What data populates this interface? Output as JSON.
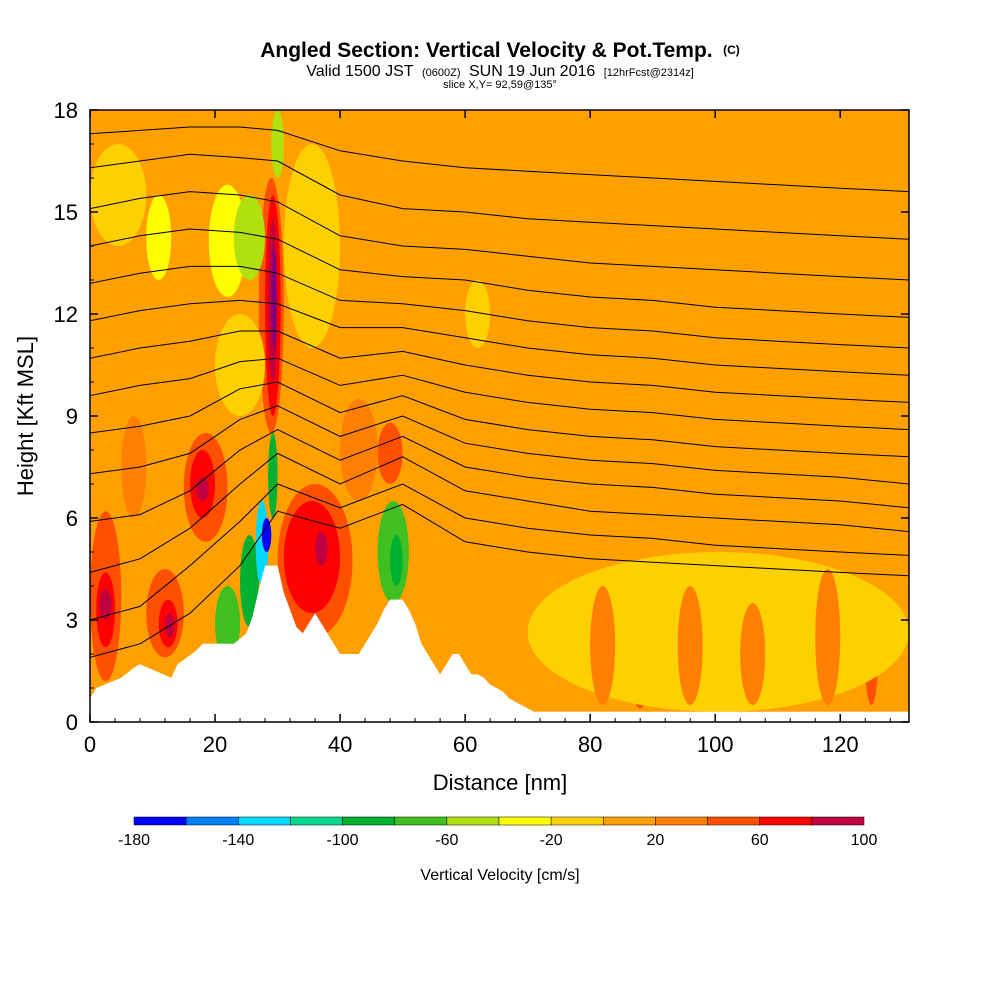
{
  "title": {
    "main": "Angled Section: Vertical Velocity & Pot.Temp.",
    "units_tag": "(C)",
    "valid_prefix": "Valid 1500 JST",
    "valid_zulu": "(0600Z)",
    "valid_date": "SUN 19 Jun 2016",
    "forecast": "[12hrFcst@2314z]",
    "slice": "slice X,Y= 92,59@135°"
  },
  "chart_data": {
    "type": "heatmap",
    "title": "Angled Section: Vertical Velocity & Pot.Temp.",
    "xlabel": "Distance [nm]",
    "ylabel": "Height [Kft MSL]",
    "xlim": [
      0,
      131
    ],
    "ylim": [
      0,
      18
    ],
    "x_ticks": [
      0,
      20,
      40,
      60,
      80,
      100,
      120
    ],
    "y_ticks": [
      0,
      3,
      6,
      9,
      12,
      15,
      18
    ],
    "x_tick_labels": [
      "0",
      "20",
      "40",
      "60",
      "80",
      "100",
      "120"
    ],
    "y_tick_labels": [
      "0",
      "3",
      "6",
      "9",
      "12",
      "15",
      "18"
    ],
    "background_fill": "#ffa000",
    "velocity_cells": [
      {
        "x0": 0,
        "x1": 5,
        "y0": 1.2,
        "y1": 6.2,
        "value": 40
      },
      {
        "x0": 1,
        "x1": 4,
        "y0": 2.2,
        "y1": 4.4,
        "value": 60
      },
      {
        "x0": 1.5,
        "x1": 3.5,
        "y0": 3.0,
        "y1": 3.9,
        "value": 80
      },
      {
        "x0": 9,
        "x1": 15,
        "y0": 1.9,
        "y1": 4.5,
        "value": 40
      },
      {
        "x0": 11,
        "x1": 14,
        "y0": 2.2,
        "y1": 3.6,
        "value": 60
      },
      {
        "x0": 12,
        "x1": 13.5,
        "y0": 2.5,
        "y1": 3.2,
        "value": 80
      },
      {
        "x0": 15,
        "x1": 22,
        "y0": 5.3,
        "y1": 8.5,
        "value": 40
      },
      {
        "x0": 16,
        "x1": 20,
        "y0": 6.0,
        "y1": 8.0,
        "value": 60
      },
      {
        "x0": 17,
        "x1": 19,
        "y0": 6.5,
        "y1": 7.2,
        "value": 80
      },
      {
        "x0": 27,
        "x1": 31,
        "y0": 8.5,
        "y1": 16.0,
        "value": 40
      },
      {
        "x0": 28,
        "x1": 30.5,
        "y0": 9.0,
        "y1": 15.5,
        "value": 60
      },
      {
        "x0": 28.5,
        "x1": 30,
        "y0": 10.0,
        "y1": 14.8,
        "value": 80
      },
      {
        "x0": 29,
        "x1": 29.8,
        "y0": 11.0,
        "y1": 14.0,
        "value": 100
      },
      {
        "x0": 30,
        "x1": 42,
        "y0": 2.5,
        "y1": 7.0,
        "value": 40
      },
      {
        "x0": 31,
        "x1": 40,
        "y0": 3.2,
        "y1": 6.5,
        "value": 60
      },
      {
        "x0": 36,
        "x1": 38,
        "y0": 4.6,
        "y1": 5.6,
        "value": 80
      },
      {
        "x0": 46,
        "x1": 50,
        "y0": 7.0,
        "y1": 8.8,
        "value": 40
      },
      {
        "x0": 86,
        "x1": 90,
        "y0": 0.4,
        "y1": 4.8,
        "value": 40
      },
      {
        "x0": 99,
        "x1": 101,
        "y0": 0.8,
        "y1": 3.5,
        "value": 40
      },
      {
        "x0": 110,
        "x1": 112,
        "y0": 0.5,
        "y1": 3.5,
        "value": 40
      },
      {
        "x0": 124,
        "x1": 126,
        "y0": 0.5,
        "y1": 3.0,
        "value": 40
      },
      {
        "x0": 20,
        "x1": 24,
        "y0": 1.8,
        "y1": 4.0,
        "value": -80
      },
      {
        "x0": 24,
        "x1": 27,
        "y0": 2.8,
        "y1": 5.5,
        "value": -100
      },
      {
        "x0": 26.5,
        "x1": 28.5,
        "y0": 4.0,
        "y1": 6.5,
        "value": -140
      },
      {
        "x0": 27.5,
        "x1": 29,
        "y0": 5.0,
        "y1": 6.0,
        "value": -180
      },
      {
        "x0": 28.5,
        "x1": 30,
        "y0": 6.0,
        "y1": 8.5,
        "value": -100
      },
      {
        "x0": 46,
        "x1": 51,
        "y0": 3.5,
        "y1": 6.5,
        "value": -80
      },
      {
        "x0": 48,
        "x1": 50,
        "y0": 4.0,
        "y1": 5.5,
        "value": -100
      },
      {
        "x0": 9,
        "x1": 13,
        "y0": 13.0,
        "y1": 15.5,
        "value": -40
      },
      {
        "x0": 19,
        "x1": 25,
        "y0": 12.5,
        "y1": 15.8,
        "value": -40
      },
      {
        "x0": 23,
        "x1": 28,
        "y0": 13.0,
        "y1": 15.5,
        "value": -60
      },
      {
        "x0": 29,
        "x1": 31,
        "y0": 16.0,
        "y1": 18.0,
        "value": -60
      },
      {
        "x0": 20,
        "x1": 28,
        "y0": 9.0,
        "y1": 12.0,
        "value": -20
      },
      {
        "x0": 31,
        "x1": 40,
        "y0": 11.0,
        "y1": 17.0,
        "value": -20
      },
      {
        "x0": 0,
        "x1": 9,
        "y0": 14.0,
        "y1": 17.0,
        "value": -20
      },
      {
        "x0": 60,
        "x1": 64,
        "y0": 11.0,
        "y1": 13.0,
        "value": -20
      },
      {
        "x0": 70,
        "x1": 131,
        "y0": 0.3,
        "y1": 5.0,
        "value": -20
      },
      {
        "x0": 94,
        "x1": 98,
        "y0": 0.5,
        "y1": 4.0,
        "value": 20
      },
      {
        "x0": 80,
        "x1": 84,
        "y0": 0.5,
        "y1": 4.0,
        "value": 20
      },
      {
        "x0": 116,
        "x1": 120,
        "y0": 0.5,
        "y1": 4.5,
        "value": 20
      },
      {
        "x0": 104,
        "x1": 108,
        "y0": 0.5,
        "y1": 3.5,
        "value": 20
      },
      {
        "x0": 5,
        "x1": 9,
        "y0": 6.0,
        "y1": 9.0,
        "value": 20
      },
      {
        "x0": 40,
        "x1": 46,
        "y0": 6.5,
        "y1": 9.5,
        "value": 20
      }
    ],
    "isentropes": [
      {
        "x": [
          0,
          8,
          16,
          24,
          30,
          40,
          50,
          60,
          70,
          80,
          90,
          100,
          110,
          120,
          131
        ],
        "y": [
          1.9,
          2.3,
          3.2,
          4.6,
          6.2,
          5.7,
          6.4,
          5.3,
          5.0,
          4.8,
          4.7,
          4.6,
          4.5,
          4.4,
          4.3
        ]
      },
      {
        "x": [
          0,
          8,
          16,
          24,
          30,
          40,
          50,
          60,
          70,
          80,
          90,
          100,
          110,
          120,
          131
        ],
        "y": [
          3.0,
          3.4,
          4.6,
          5.9,
          7.0,
          6.3,
          7.0,
          6.0,
          5.7,
          5.5,
          5.4,
          5.2,
          5.1,
          5.0,
          4.9
        ]
      },
      {
        "x": [
          0,
          8,
          16,
          24,
          30,
          40,
          50,
          60,
          70,
          80,
          90,
          100,
          110,
          120,
          131
        ],
        "y": [
          4.4,
          4.8,
          5.7,
          7.0,
          7.9,
          7.0,
          7.8,
          6.8,
          6.5,
          6.2,
          6.1,
          6.0,
          5.9,
          5.8,
          5.6
        ]
      },
      {
        "x": [
          0,
          8,
          16,
          24,
          30,
          40,
          50,
          60,
          70,
          80,
          90,
          100,
          110,
          120,
          131
        ],
        "y": [
          5.9,
          6.1,
          6.8,
          8.0,
          8.6,
          7.7,
          8.4,
          7.5,
          7.2,
          7.0,
          6.9,
          6.7,
          6.6,
          6.5,
          6.3
        ]
      },
      {
        "x": [
          0,
          8,
          16,
          24,
          30,
          40,
          50,
          60,
          70,
          80,
          90,
          100,
          110,
          120,
          131
        ],
        "y": [
          7.3,
          7.5,
          7.9,
          8.9,
          9.3,
          8.4,
          9.0,
          8.2,
          7.9,
          7.7,
          7.6,
          7.4,
          7.3,
          7.2,
          7.0
        ]
      },
      {
        "x": [
          0,
          8,
          16,
          24,
          30,
          40,
          50,
          60,
          70,
          80,
          90,
          100,
          110,
          120,
          131
        ],
        "y": [
          8.5,
          8.7,
          9.0,
          9.8,
          10.0,
          9.1,
          9.6,
          8.9,
          8.6,
          8.4,
          8.3,
          8.1,
          8.0,
          7.9,
          7.8
        ]
      },
      {
        "x": [
          0,
          8,
          16,
          24,
          30,
          40,
          50,
          60,
          70,
          80,
          90,
          100,
          110,
          120,
          131
        ],
        "y": [
          9.6,
          9.9,
          10.1,
          10.6,
          10.7,
          9.9,
          10.2,
          9.7,
          9.4,
          9.2,
          9.1,
          8.9,
          8.8,
          8.7,
          8.6
        ]
      },
      {
        "x": [
          0,
          8,
          16,
          24,
          30,
          40,
          50,
          60,
          70,
          80,
          90,
          100,
          110,
          120,
          131
        ],
        "y": [
          10.7,
          11.0,
          11.2,
          11.5,
          11.5,
          10.7,
          10.9,
          10.5,
          10.2,
          10.0,
          9.9,
          9.7,
          9.6,
          9.5,
          9.4
        ]
      },
      {
        "x": [
          0,
          8,
          16,
          24,
          30,
          40,
          50,
          60,
          70,
          80,
          90,
          100,
          110,
          120,
          131
        ],
        "y": [
          11.8,
          12.1,
          12.3,
          12.4,
          12.3,
          11.6,
          11.6,
          11.3,
          11.0,
          10.8,
          10.7,
          10.5,
          10.4,
          10.3,
          10.2
        ]
      },
      {
        "x": [
          0,
          8,
          16,
          24,
          30,
          40,
          50,
          60,
          70,
          80,
          90,
          100,
          110,
          120,
          131
        ],
        "y": [
          12.9,
          13.2,
          13.4,
          13.4,
          13.2,
          12.4,
          12.3,
          12.1,
          11.8,
          11.6,
          11.5,
          11.3,
          11.2,
          11.1,
          11.0
        ]
      },
      {
        "x": [
          0,
          8,
          16,
          24,
          30,
          40,
          50,
          60,
          70,
          80,
          90,
          100,
          110,
          120,
          131
        ],
        "y": [
          14.0,
          14.3,
          14.5,
          14.4,
          14.2,
          13.3,
          13.1,
          13.0,
          12.7,
          12.5,
          12.4,
          12.2,
          12.1,
          12.0,
          11.9
        ]
      },
      {
        "x": [
          0,
          8,
          16,
          24,
          30,
          40,
          50,
          60,
          70,
          80,
          90,
          100,
          110,
          120,
          131
        ],
        "y": [
          15.1,
          15.4,
          15.6,
          15.5,
          15.3,
          14.3,
          14.0,
          13.9,
          13.7,
          13.5,
          13.4,
          13.3,
          13.2,
          13.1,
          13.0
        ]
      },
      {
        "x": [
          0,
          8,
          16,
          24,
          30,
          40,
          50,
          60,
          70,
          80,
          90,
          100,
          110,
          120,
          131
        ],
        "y": [
          16.3,
          16.5,
          16.7,
          16.6,
          16.5,
          15.5,
          15.1,
          15.0,
          14.8,
          14.7,
          14.6,
          14.5,
          14.4,
          14.3,
          14.2
        ]
      },
      {
        "x": [
          0,
          8,
          16,
          24,
          30,
          40,
          50,
          60,
          70,
          80,
          90,
          100,
          110,
          120,
          131
        ],
        "y": [
          17.3,
          17.4,
          17.5,
          17.5,
          17.4,
          16.8,
          16.5,
          16.3,
          16.2,
          16.1,
          16.0,
          15.9,
          15.8,
          15.7,
          15.6
        ]
      }
    ],
    "terrain": {
      "x": [
        0,
        1,
        5,
        7,
        8,
        13,
        14,
        17,
        18,
        19,
        21,
        22,
        23,
        25,
        26,
        27,
        28,
        30,
        31,
        32,
        33,
        34,
        35,
        36,
        37,
        38,
        39,
        40,
        41,
        42,
        43,
        44,
        45,
        46,
        47,
        48,
        49,
        50,
        51,
        52,
        53,
        54,
        55,
        56,
        57,
        58,
        59,
        60,
        61,
        62,
        63,
        64,
        65,
        66,
        67,
        68,
        69,
        70,
        71,
        131
      ],
      "y": [
        0.7,
        1.0,
        1.3,
        1.6,
        1.7,
        1.3,
        1.7,
        2.1,
        2.3,
        2.3,
        2.3,
        2.3,
        2.3,
        2.6,
        3.1,
        3.9,
        4.6,
        4.6,
        3.8,
        3.3,
        2.8,
        2.6,
        2.9,
        3.2,
        2.9,
        2.6,
        2.3,
        2.0,
        2.0,
        2.0,
        2.0,
        2.3,
        2.6,
        2.9,
        3.3,
        3.6,
        3.6,
        3.6,
        3.3,
        2.9,
        2.3,
        2.0,
        1.7,
        1.4,
        1.7,
        2.0,
        2.0,
        1.7,
        1.4,
        1.4,
        1.3,
        1.1,
        1.0,
        0.9,
        0.7,
        0.6,
        0.5,
        0.4,
        0.3,
        0.3
      ]
    },
    "colorbar": {
      "label": "Vertical Velocity [cm/s]",
      "min": -180,
      "max": 100,
      "step": 20,
      "tick_values": [
        -180,
        -140,
        -100,
        -60,
        -20,
        20,
        60,
        100
      ],
      "tick_labels": [
        "-180",
        "-140",
        "-100",
        "-60",
        "-20",
        "20",
        "60",
        "100"
      ],
      "colors": [
        "#0000ff",
        "#0080ff",
        "#00d8ff",
        "#00d890",
        "#00b030",
        "#40c020",
        "#b0e010",
        "#ffff00",
        "#ffd000",
        "#ffa000",
        "#ff8000",
        "#ff5000",
        "#ff0000",
        "#c00040",
        "#800080"
      ]
    }
  }
}
